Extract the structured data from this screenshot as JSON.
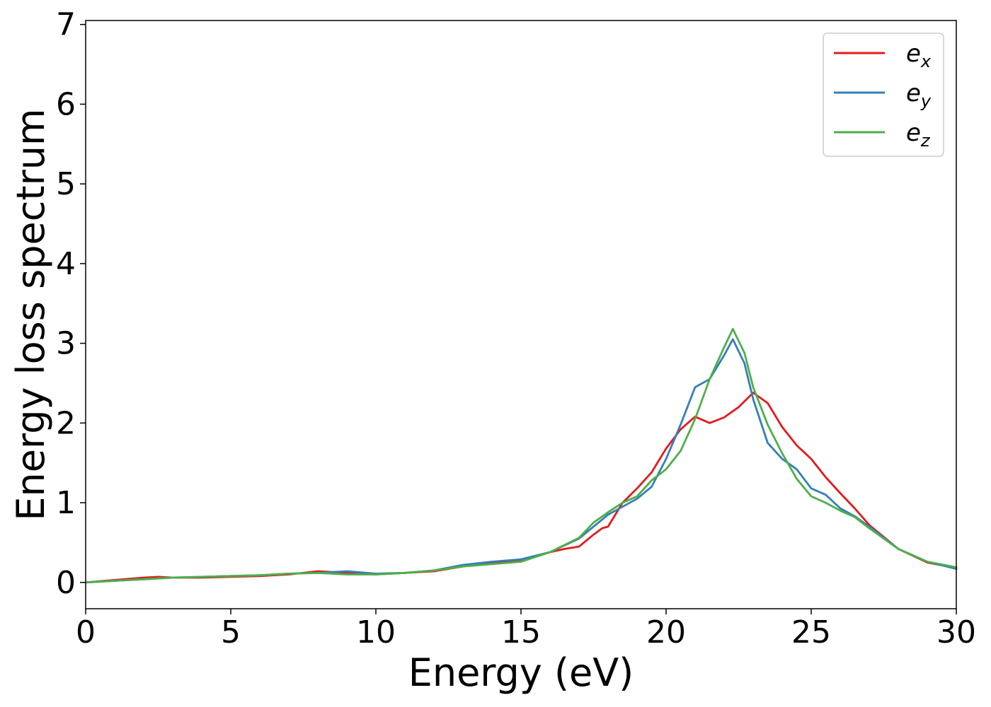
{
  "chart_data": {
    "type": "line",
    "xlabel": "Energy (eV)",
    "ylabel": "Energy loss spectrum",
    "xlim": [
      0,
      30
    ],
    "ylim": [
      -0.33,
      7.05
    ],
    "xticks": [
      0,
      5,
      10,
      15,
      20,
      25,
      30
    ],
    "yticks": [
      0,
      1,
      2,
      3,
      4,
      5,
      6,
      7
    ],
    "xtick_labels": [
      "0",
      "5",
      "10",
      "15",
      "20",
      "25",
      "30"
    ],
    "ytick_labels": [
      "0",
      "1",
      "2",
      "3",
      "4",
      "5",
      "6",
      "7"
    ],
    "grid": false,
    "legend_position": "top-right",
    "series": [
      {
        "name": "e_x",
        "label_base": "e",
        "label_sub": "x",
        "color": "#e41a1c",
        "x": [
          0,
          1,
          2,
          2.5,
          3,
          4,
          5,
          6,
          7,
          8,
          9,
          10,
          11,
          12,
          13,
          14,
          15,
          16,
          16.5,
          17,
          17.5,
          17.8,
          18,
          18.5,
          19,
          19.5,
          20,
          20.5,
          21,
          21.5,
          22,
          22.5,
          23,
          23.5,
          24,
          24.5,
          25,
          25.5,
          26,
          26.5,
          27,
          28,
          29,
          30
        ],
        "y": [
          0.0,
          0.03,
          0.06,
          0.07,
          0.06,
          0.06,
          0.07,
          0.08,
          0.1,
          0.14,
          0.12,
          0.1,
          0.12,
          0.14,
          0.2,
          0.25,
          0.28,
          0.38,
          0.42,
          0.45,
          0.6,
          0.68,
          0.7,
          1.0,
          1.18,
          1.38,
          1.68,
          1.92,
          2.08,
          2.0,
          2.07,
          2.2,
          2.38,
          2.25,
          1.95,
          1.72,
          1.55,
          1.32,
          1.12,
          0.93,
          0.72,
          0.42,
          0.25,
          0.18
        ]
      },
      {
        "name": "e_y",
        "label_base": "e",
        "label_sub": "y",
        "color": "#377eb8",
        "x": [
          0,
          1,
          2,
          3,
          4,
          5,
          6,
          7,
          8,
          9,
          10,
          11,
          12,
          13,
          14,
          15,
          16,
          17,
          18,
          18.5,
          19,
          19.5,
          20,
          20.5,
          21,
          21.5,
          22,
          22.3,
          22.7,
          23,
          23.5,
          24,
          24.5,
          25,
          25.5,
          26,
          26.5,
          27,
          28,
          29,
          30
        ],
        "y": [
          0.0,
          0.02,
          0.04,
          0.06,
          0.07,
          0.08,
          0.09,
          0.11,
          0.12,
          0.14,
          0.11,
          0.12,
          0.15,
          0.22,
          0.26,
          0.29,
          0.38,
          0.55,
          0.85,
          0.95,
          1.05,
          1.2,
          1.55,
          1.98,
          2.45,
          2.55,
          2.85,
          3.05,
          2.75,
          2.3,
          1.75,
          1.55,
          1.42,
          1.18,
          1.1,
          0.93,
          0.83,
          0.7,
          0.42,
          0.26,
          0.17
        ]
      },
      {
        "name": "e_z",
        "label_base": "e",
        "label_sub": "z",
        "color": "#4daf4a",
        "x": [
          0,
          1,
          2,
          3,
          4,
          5,
          6,
          7,
          8,
          9,
          10,
          11,
          12,
          13,
          14,
          15,
          16,
          17,
          17.5,
          18,
          18.5,
          19,
          19.5,
          20,
          20.5,
          21,
          21.5,
          22,
          22.3,
          22.7,
          23,
          23.5,
          24,
          24.5,
          25,
          25.5,
          26,
          26.5,
          27,
          28,
          29,
          30
        ],
        "y": [
          0.0,
          0.02,
          0.04,
          0.06,
          0.07,
          0.08,
          0.09,
          0.11,
          0.12,
          0.1,
          0.1,
          0.12,
          0.15,
          0.2,
          0.23,
          0.26,
          0.38,
          0.56,
          0.75,
          0.88,
          1.0,
          1.08,
          1.28,
          1.42,
          1.65,
          2.05,
          2.55,
          2.95,
          3.18,
          2.88,
          2.45,
          1.98,
          1.62,
          1.3,
          1.08,
          1.0,
          0.9,
          0.82,
          0.68,
          0.42,
          0.26,
          0.19
        ]
      }
    ]
  }
}
